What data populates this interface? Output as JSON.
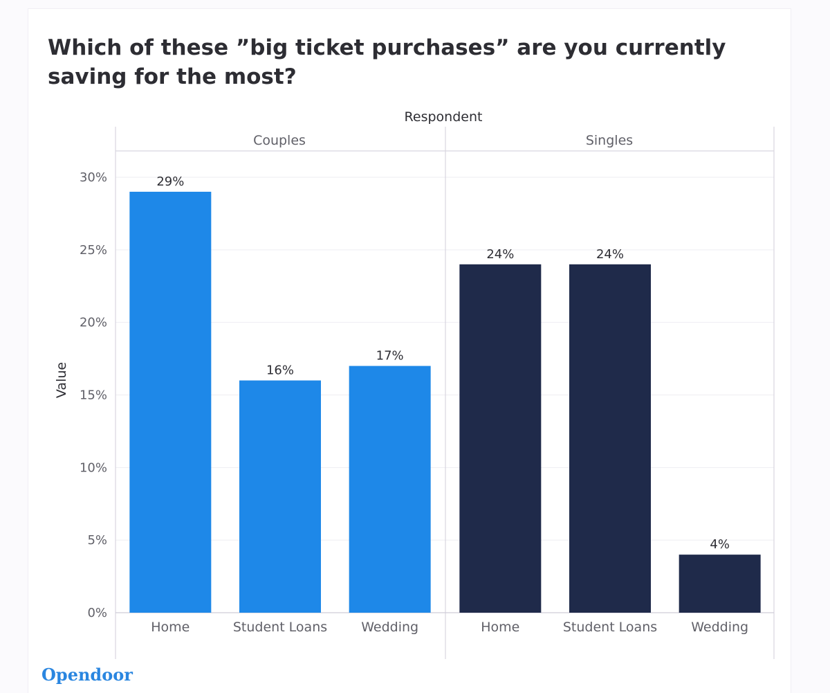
{
  "chart_data": {
    "type": "bar",
    "title": "Which of these ”big ticket purchases” are you currently saving for the most?",
    "facet_label": "Respondent",
    "ylabel": "Value",
    "xlabel": "",
    "ylim": [
      0,
      32
    ],
    "yticks": [
      0,
      5,
      10,
      15,
      20,
      25,
      30
    ],
    "ytick_labels": [
      "0%",
      "5%",
      "10%",
      "15%",
      "20%",
      "25%",
      "30%"
    ],
    "grid": true,
    "panels": [
      {
        "name": "Couples",
        "color": "#1e88e8",
        "categories": [
          "Home",
          "Student Loans",
          "Wedding"
        ],
        "values": [
          29,
          16,
          17
        ],
        "labels": [
          "29%",
          "16%",
          "17%"
        ]
      },
      {
        "name": "Singles",
        "color": "#1f2a4a",
        "categories": [
          "Home",
          "Student Loans",
          "Wedding"
        ],
        "values": [
          24,
          24,
          4
        ],
        "labels": [
          "24%",
          "24%",
          "4%"
        ]
      }
    ]
  },
  "brand": {
    "logo_text": "Opendoor",
    "logo_color": "#2a86e0"
  }
}
